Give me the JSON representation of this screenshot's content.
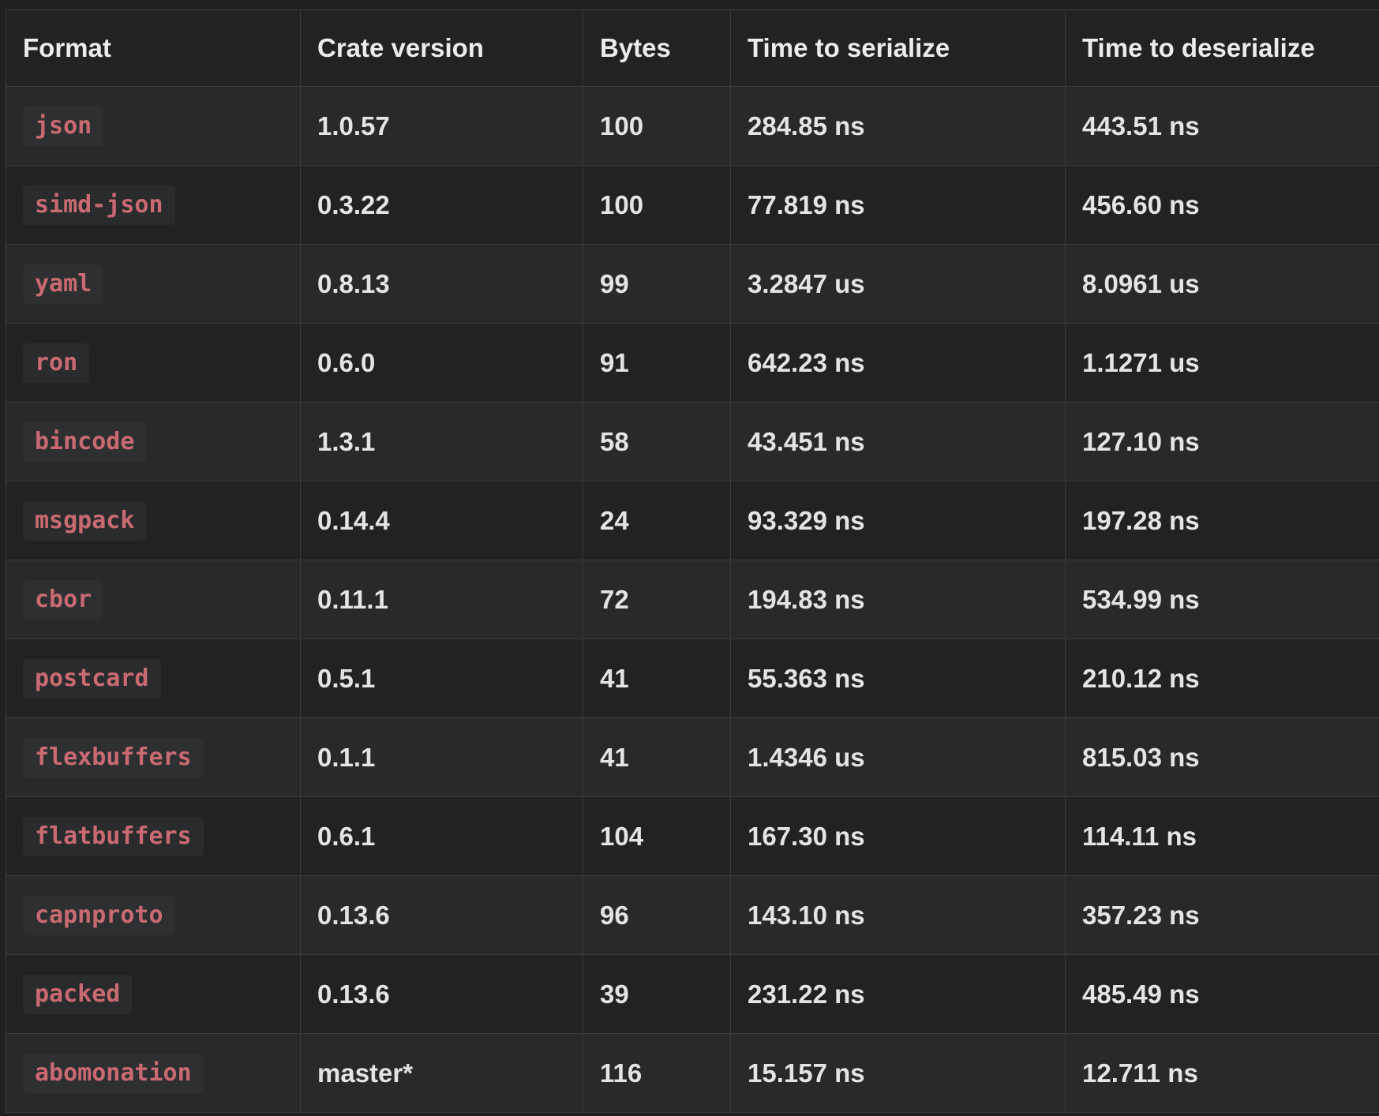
{
  "table": {
    "headers": [
      "Format",
      "Crate version",
      "Bytes",
      "Time to serialize",
      "Time to deserialize"
    ],
    "rows": [
      [
        "json",
        "1.0.57",
        "100",
        "284.85 ns",
        "443.51 ns"
      ],
      [
        "simd-json",
        "0.3.22",
        "100",
        "77.819 ns",
        "456.60 ns"
      ],
      [
        "yaml",
        "0.8.13",
        "99",
        "3.2847 us",
        "8.0961 us"
      ],
      [
        "ron",
        "0.6.0",
        "91",
        "642.23 ns",
        "1.1271 us"
      ],
      [
        "bincode",
        "1.3.1",
        "58",
        "43.451 ns",
        "127.10 ns"
      ],
      [
        "msgpack",
        "0.14.4",
        "24",
        "93.329 ns",
        "197.28 ns"
      ],
      [
        "cbor",
        "0.11.1",
        "72",
        "194.83 ns",
        "534.99 ns"
      ],
      [
        "postcard",
        "0.5.1",
        "41",
        "55.363 ns",
        "210.12 ns"
      ],
      [
        "flexbuffers",
        "0.1.1",
        "41",
        "1.4346 us",
        "815.03 ns"
      ],
      [
        "flatbuffers",
        "0.6.1",
        "104",
        "167.30 ns",
        "114.11 ns"
      ],
      [
        "capnproto",
        "0.13.6",
        "96",
        "143.10 ns",
        "357.23 ns"
      ],
      [
        "packed",
        "0.13.6",
        "39",
        "231.22 ns",
        "485.49 ns"
      ],
      [
        "abomonation",
        "master*",
        "116",
        "15.157 ns",
        "12.711 ns"
      ]
    ]
  },
  "colors": {
    "background": "#1f2020",
    "row_alt": "#29292c",
    "code_text": "#c96a72",
    "code_bg": "#2e2f31",
    "border": "#3a3b3c"
  }
}
